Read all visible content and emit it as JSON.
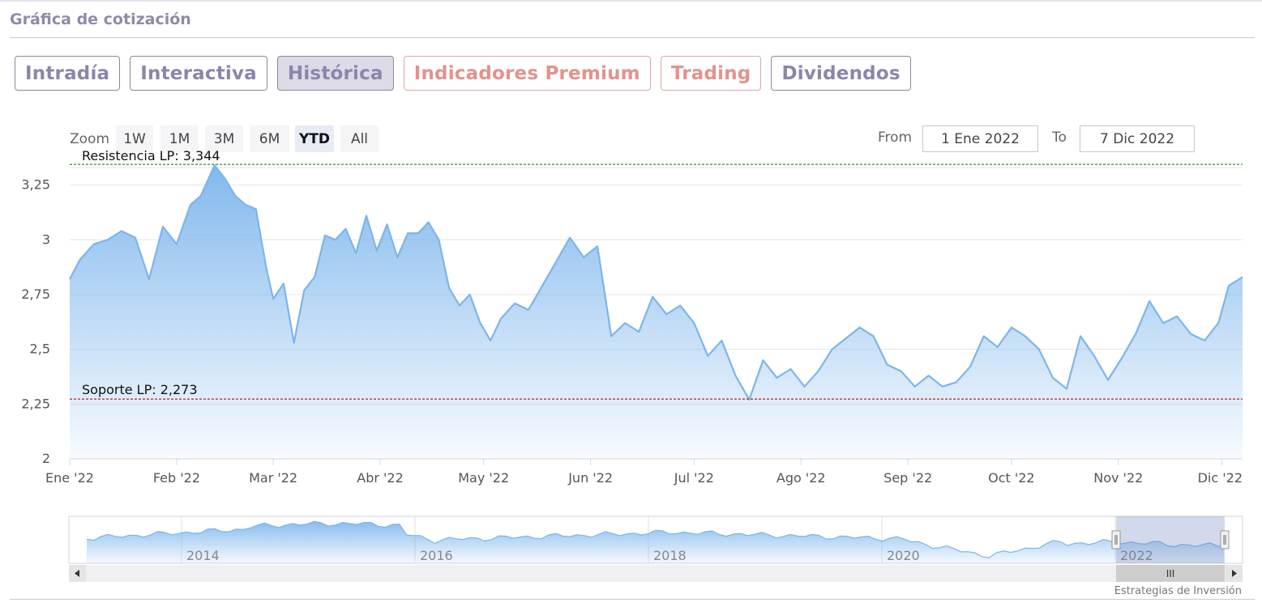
{
  "header": {
    "title": "Gráfica de cotización"
  },
  "tabs": [
    {
      "label": "Intradía",
      "style": "normal"
    },
    {
      "label": "Interactiva",
      "style": "normal"
    },
    {
      "label": "Histórica",
      "style": "active"
    },
    {
      "label": "Indicadores Premium",
      "style": "premium"
    },
    {
      "label": "Trading",
      "style": "premium"
    },
    {
      "label": "Dividendos",
      "style": "normal"
    }
  ],
  "zoom": {
    "label": "Zoom",
    "buttons": [
      "1W",
      "1M",
      "3M",
      "6M",
      "YTD",
      "All"
    ],
    "selected": "YTD"
  },
  "range": {
    "from_label": "From",
    "from_value": "1 Ene 2022",
    "to_label": "To",
    "to_value": "7 Dic 2022"
  },
  "navigator": {
    "year_labels": [
      "2014",
      "2016",
      "2018",
      "2020",
      "2022"
    ],
    "scroll_left_icon": "triangle-left-icon",
    "scroll_right_icon": "triangle-right-icon",
    "handle_grip": "III"
  },
  "credits": "Estrategias de Inversión",
  "colors": {
    "line": "#7cb5ec",
    "resistance": "#2e8b2e",
    "support": "#b22222",
    "accent": "#8a86aa",
    "premium": "#e3928c"
  },
  "chart_data": {
    "type": "area",
    "ylim": [
      2,
      3.4
    ],
    "ytick_values": [
      2,
      2.25,
      2.5,
      2.75,
      3,
      3.25
    ],
    "ytick_labels": [
      "2",
      "2,25",
      "2,5",
      "2,75",
      "3",
      "3,25"
    ],
    "x_tick_labels": [
      "Ene '22",
      "Feb '22",
      "Mar '22",
      "Abr '22",
      "May '22",
      "Jun '22",
      "Jul '22",
      "Ago '22",
      "Sep '22",
      "Oct '22",
      "Nov '22",
      "Dic '22"
    ],
    "x_tick_dates": [
      "2022-01-01",
      "2022-02-01",
      "2022-03-01",
      "2022-04-01",
      "2022-05-01",
      "2022-06-01",
      "2022-07-01",
      "2022-08-01",
      "2022-09-01",
      "2022-10-01",
      "2022-11-01",
      "2022-12-01"
    ],
    "x_range": [
      "2022-01-01",
      "2022-12-07"
    ],
    "resistance": {
      "label": "Resistencia LP: 3,344",
      "value": 3.344
    },
    "support": {
      "label": "Soporte LP: 2,273",
      "value": 2.273
    },
    "series": [
      {
        "x": [
          "2022-01-01",
          "2022-01-04",
          "2022-01-08",
          "2022-01-12",
          "2022-01-16",
          "2022-01-20",
          "2022-01-24",
          "2022-01-28",
          "2022-02-01",
          "2022-02-05",
          "2022-02-08",
          "2022-02-12",
          "2022-02-15",
          "2022-02-18",
          "2022-02-21",
          "2022-02-24",
          "2022-02-27",
          "2022-03-01",
          "2022-03-04",
          "2022-03-07",
          "2022-03-10",
          "2022-03-13",
          "2022-03-16",
          "2022-03-19",
          "2022-03-22",
          "2022-03-25",
          "2022-03-28",
          "2022-03-31",
          "2022-04-03",
          "2022-04-06",
          "2022-04-09",
          "2022-04-12",
          "2022-04-15",
          "2022-04-18",
          "2022-04-21",
          "2022-04-24",
          "2022-04-27",
          "2022-04-30",
          "2022-05-03",
          "2022-05-06",
          "2022-05-10",
          "2022-05-14",
          "2022-05-18",
          "2022-05-22",
          "2022-05-26",
          "2022-05-30",
          "2022-06-03",
          "2022-06-07",
          "2022-06-11",
          "2022-06-15",
          "2022-06-19",
          "2022-06-23",
          "2022-06-27",
          "2022-07-01",
          "2022-07-05",
          "2022-07-09",
          "2022-07-13",
          "2022-07-17",
          "2022-07-21",
          "2022-07-25",
          "2022-07-29",
          "2022-08-02",
          "2022-08-06",
          "2022-08-10",
          "2022-08-14",
          "2022-08-18",
          "2022-08-22",
          "2022-08-26",
          "2022-08-30",
          "2022-09-03",
          "2022-09-07",
          "2022-09-11",
          "2022-09-15",
          "2022-09-19",
          "2022-09-23",
          "2022-09-27",
          "2022-10-01",
          "2022-10-05",
          "2022-10-09",
          "2022-10-13",
          "2022-10-17",
          "2022-10-21",
          "2022-10-25",
          "2022-10-29",
          "2022-11-02",
          "2022-11-06",
          "2022-11-10",
          "2022-11-14",
          "2022-11-18",
          "2022-11-22",
          "2022-11-26",
          "2022-11-30",
          "2022-12-03",
          "2022-12-07"
        ],
        "values": [
          2.82,
          2.91,
          2.98,
          3.0,
          3.04,
          3.01,
          2.82,
          3.06,
          2.98,
          3.16,
          3.2,
          3.34,
          3.28,
          3.2,
          3.16,
          3.14,
          2.87,
          2.73,
          2.8,
          2.53,
          2.77,
          2.83,
          3.02,
          3.0,
          3.05,
          2.94,
          3.11,
          2.95,
          3.07,
          2.92,
          3.03,
          3.03,
          3.08,
          3.0,
          2.78,
          2.7,
          2.75,
          2.62,
          2.54,
          2.64,
          2.71,
          2.68,
          2.79,
          2.9,
          3.01,
          2.92,
          2.97,
          2.56,
          2.62,
          2.58,
          2.74,
          2.66,
          2.7,
          2.62,
          2.47,
          2.54,
          2.38,
          2.27,
          2.45,
          2.37,
          2.41,
          2.33,
          2.4,
          2.5,
          2.55,
          2.6,
          2.56,
          2.43,
          2.4,
          2.33,
          2.38,
          2.33,
          2.35,
          2.42,
          2.56,
          2.51,
          2.6,
          2.56,
          2.5,
          2.37,
          2.32,
          2.56,
          2.47,
          2.36,
          2.46,
          2.57,
          2.72,
          2.62,
          2.65,
          2.57,
          2.54,
          2.62,
          2.79,
          2.83
        ]
      }
    ]
  }
}
